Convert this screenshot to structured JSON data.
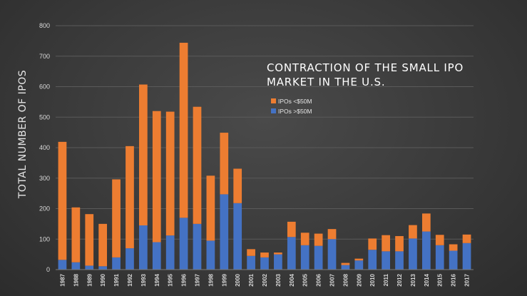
{
  "chart_data": {
    "type": "bar",
    "stacked": true,
    "title_lines": [
      "CONTRACTION OF THE SMALL IPO",
      "MARKET IN THE U.S."
    ],
    "xlabel": "",
    "ylabel": "TOTAL NUMBER OF IPOS",
    "ylim": [
      0,
      800
    ],
    "yticks": [
      0,
      100,
      200,
      300,
      400,
      500,
      600,
      700,
      800
    ],
    "grid": true,
    "legend_placement": "top-right",
    "categories": [
      "1987",
      "1988",
      "1989",
      "1990",
      "1991",
      "1992",
      "1993",
      "1994",
      "1995",
      "1996",
      "1997",
      "1998",
      "1999",
      "2000",
      "2001",
      "2002",
      "2003",
      "2004",
      "2005",
      "2006",
      "2007",
      "2008",
      "2009",
      "2010",
      "2011",
      "2012",
      "2013",
      "2014",
      "2015",
      "2016",
      "2017"
    ],
    "series": [
      {
        "name": "IPOs >$50M",
        "color": "#4472c4",
        "values": [
          32,
          24,
          13,
          11,
          40,
          70,
          145,
          90,
          112,
          170,
          150,
          95,
          247,
          218,
          45,
          40,
          50,
          107,
          80,
          78,
          100,
          15,
          30,
          65,
          60,
          60,
          102,
          125,
          80,
          62,
          87
        ]
      },
      {
        "name": "IPOs <$50M",
        "color": "#ed7d31",
        "values": [
          387,
          180,
          169,
          139,
          256,
          335,
          462,
          430,
          406,
          574,
          384,
          213,
          202,
          113,
          22,
          16,
          6,
          50,
          41,
          40,
          33,
          7,
          6,
          37,
          53,
          50,
          44,
          59,
          34,
          21,
          28
        ]
      }
    ]
  }
}
